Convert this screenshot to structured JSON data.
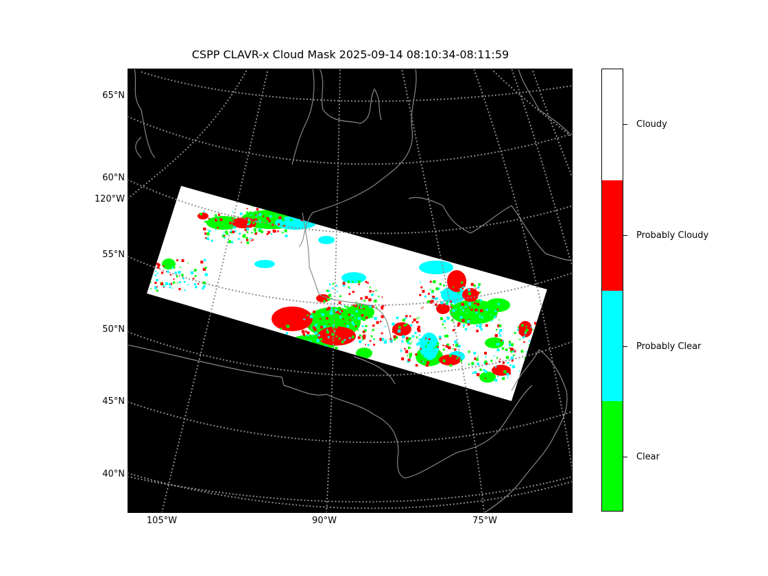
{
  "title": "CSPP CLAVR-x Cloud Mask 2025-09-14 08:10:34-08:11:59",
  "lat_labels": [
    {
      "text": "65°N",
      "lat": 65
    },
    {
      "text": "60°N",
      "lat": 60
    },
    {
      "text": "55°N",
      "lat": 55
    },
    {
      "text": "50°N",
      "lat": 50
    },
    {
      "text": "45°N",
      "lat": 45
    },
    {
      "text": "40°N",
      "lat": 40
    }
  ],
  "edge_lon_label": "120°W",
  "lon_labels": [
    {
      "text": "105°W",
      "lon": -105
    },
    {
      "text": "90°W",
      "lon": -90
    },
    {
      "text": "75°W",
      "lon": -75
    }
  ],
  "colorbar": {
    "categories": [
      {
        "label": "Cloudy",
        "color": "#ffffff"
      },
      {
        "label": "Probably Cloudy",
        "color": "#ff0000"
      },
      {
        "label": "Probably Clear",
        "color": "#00ffff"
      },
      {
        "label": "Clear",
        "color": "#00ff00"
      }
    ]
  },
  "colors": {
    "background": "#000000",
    "coastline": "#888888",
    "gridline": "#8c8c8c"
  }
}
